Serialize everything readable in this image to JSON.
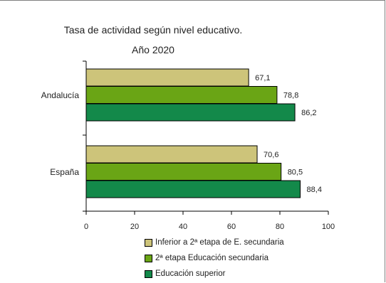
{
  "chart_data": {
    "type": "bar",
    "orientation": "horizontal",
    "title": "Tasa de actividad según nivel educativo.",
    "subtitle": "Año 2020",
    "categories": [
      "Andalucía",
      "España"
    ],
    "series": [
      {
        "name": "Inferior a 2ª etapa de E. secundaria",
        "values": [
          67.1,
          70.6
        ],
        "labels": [
          "67,1",
          "70,6"
        ],
        "color": "#cdc47a"
      },
      {
        "name": "2ª etapa Educación secundaria",
        "values": [
          78.8,
          80.5
        ],
        "labels": [
          "78,8",
          "80,5"
        ],
        "color": "#6aa515"
      },
      {
        "name": "Educación superior",
        "values": [
          86.2,
          88.4
        ],
        "labels": [
          "86,2",
          "88,4"
        ],
        "color": "#13894a"
      }
    ],
    "xlim": [
      0,
      100
    ],
    "xticks": [
      "0",
      "20",
      "40",
      "60",
      "80",
      "100"
    ],
    "xlabel": "",
    "ylabel": "",
    "grid": false,
    "legend_position": "bottom"
  }
}
